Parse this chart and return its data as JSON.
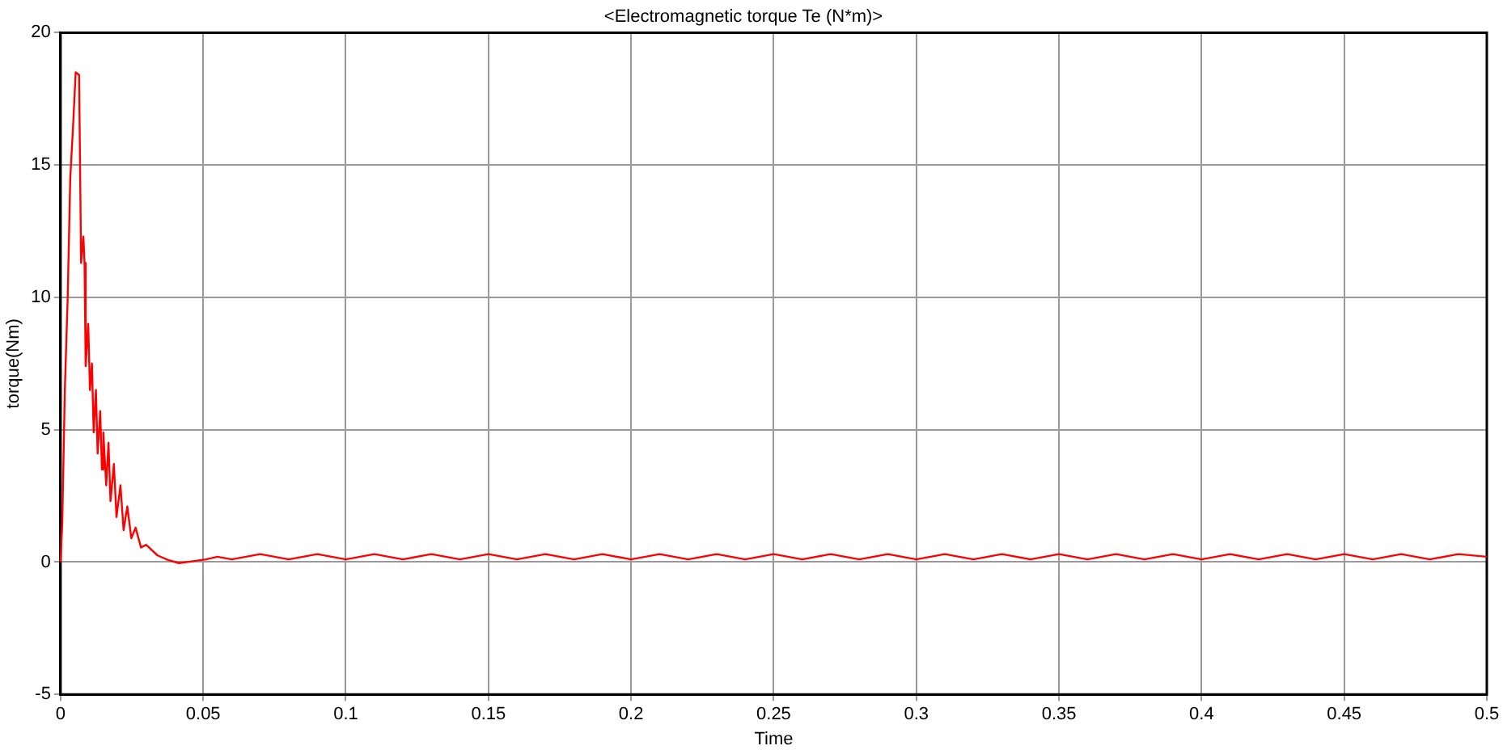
{
  "chart_data": {
    "type": "line",
    "title": "<Electromagnetic torque Te (N*m)>",
    "xlabel": "Time",
    "ylabel": "torque(Nm)",
    "x": [
      0,
      0.0006,
      0.0015,
      0.0025,
      0.0034,
      0.0044,
      0.0053,
      0.0065,
      0.0072,
      0.008,
      0.0084,
      0.0088,
      0.0097,
      0.0103,
      0.011,
      0.0116,
      0.0124,
      0.013,
      0.0139,
      0.0145,
      0.015,
      0.016,
      0.0168,
      0.0175,
      0.0187,
      0.0196,
      0.021,
      0.0221,
      0.0234,
      0.0248,
      0.0263,
      0.0282,
      0.03,
      0.034,
      0.0377,
      0.0415,
      0.047,
      0.051,
      0.055,
      0.06,
      0.07,
      0.08,
      0.09,
      0.1,
      0.11,
      0.12,
      0.13,
      0.14,
      0.15,
      0.16,
      0.17,
      0.18,
      0.19,
      0.2,
      0.21,
      0.22,
      0.23,
      0.24,
      0.25,
      0.26,
      0.27,
      0.28,
      0.29,
      0.3,
      0.31,
      0.32,
      0.33,
      0.34,
      0.35,
      0.36,
      0.37,
      0.38,
      0.39,
      0.4,
      0.41,
      0.42,
      0.43,
      0.44,
      0.45,
      0.46,
      0.47,
      0.48,
      0.49,
      0.5
    ],
    "series": [
      {
        "color": "#ff0000",
        "values": [
          0,
          1.5,
          6.5,
          10,
          14.5,
          16.5,
          18.5,
          18.4,
          11.3,
          12.3,
          11.3,
          7.4,
          9,
          6.5,
          7.5,
          4.9,
          6.5,
          4.1,
          5.7,
          3.5,
          4.9,
          2.9,
          4.5,
          2.3,
          3.7,
          1.7,
          2.9,
          1.2,
          2.1,
          0.9,
          1.3,
          0.55,
          0.65,
          0.25,
          0.08,
          -0.04,
          0.04,
          0.1,
          0.2,
          0.1,
          0.3,
          0.1,
          0.3,
          0.1,
          0.3,
          0.1,
          0.3,
          0.1,
          0.3,
          0.1,
          0.3,
          0.1,
          0.3,
          0.1,
          0.3,
          0.1,
          0.3,
          0.1,
          0.3,
          0.1,
          0.3,
          0.1,
          0.3,
          0.1,
          0.3,
          0.1,
          0.3,
          0.1,
          0.3,
          0.1,
          0.3,
          0.1,
          0.3,
          0.1,
          0.3,
          0.1,
          0.3,
          0.1,
          0.3,
          0.1,
          0.3,
          0.1,
          0.3,
          0.2
        ]
      }
    ],
    "xlim": [
      0,
      0.5
    ],
    "xticks": [
      0,
      0.05,
      0.1,
      0.15,
      0.2,
      0.25,
      0.3,
      0.35,
      0.4,
      0.45,
      0.5
    ],
    "ylim": [
      -5,
      20
    ],
    "yticks": [
      -5,
      0,
      5,
      10,
      15,
      20
    ],
    "grid": true,
    "legend": false,
    "marker": "none",
    "line_style": "solid"
  }
}
